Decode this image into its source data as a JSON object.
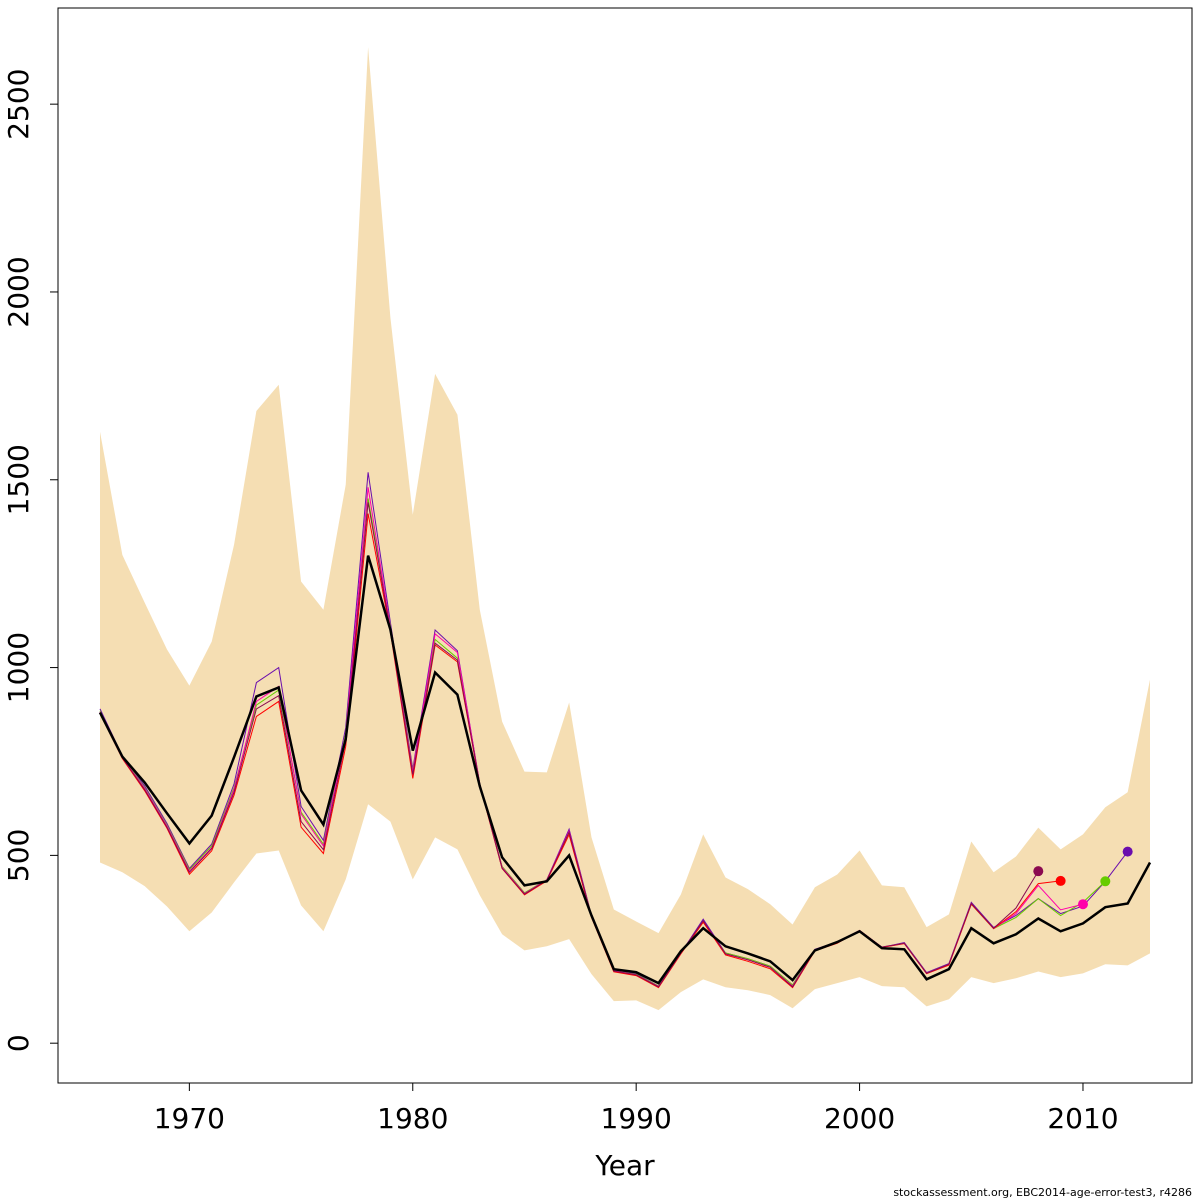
{
  "chart_data": {
    "type": "line",
    "x_label": "Year",
    "footer": "stockassessment.org, EBC2014-age-error-test3, r4286",
    "x": [
      1966,
      1967,
      1968,
      1969,
      1970,
      1971,
      1972,
      1973,
      1974,
      1975,
      1976,
      1977,
      1978,
      1979,
      1980,
      1981,
      1982,
      1983,
      1984,
      1985,
      1986,
      1987,
      1988,
      1989,
      1990,
      1991,
      1992,
      1993,
      1994,
      1995,
      1996,
      1997,
      1998,
      1999,
      2000,
      2001,
      2002,
      2003,
      2004,
      2005,
      2006,
      2007,
      2008,
      2009,
      2010,
      2011,
      2012,
      2013
    ],
    "xlim": [
      1964.12,
      2014.88
    ],
    "xticks": [
      1970,
      1980,
      1990,
      2000,
      2010
    ],
    "ylim": [
      -106,
      2756
    ],
    "yticks": [
      0,
      500,
      1000,
      1500,
      2000,
      2500
    ],
    "band": {
      "color": "#f5deb3",
      "upper": [
        1628,
        1300,
        1173,
        1048,
        952,
        1069,
        1327,
        1683,
        1753,
        1229,
        1154,
        1487,
        2652,
        1931,
        1407,
        1782,
        1673,
        1154,
        856,
        723,
        721,
        907,
        548,
        356,
        324,
        293,
        396,
        556,
        441,
        410,
        370,
        316,
        415,
        449,
        513,
        420,
        415,
        309,
        343,
        537,
        455,
        497,
        574,
        516,
        556,
        628,
        668,
        968
      ],
      "lower": [
        481,
        455,
        418,
        364,
        298,
        348,
        428,
        505,
        513,
        367,
        298,
        436,
        636,
        590,
        436,
        548,
        516,
        394,
        290,
        247,
        258,
        277,
        184,
        112,
        114,
        88,
        136,
        170,
        149,
        141,
        128,
        93,
        144,
        160,
        176,
        152,
        149,
        98,
        117,
        176,
        160,
        173,
        191,
        176,
        186,
        210,
        207,
        239
      ]
    },
    "series": [
      {
        "color": "#6a0dad",
        "values": [
          890,
          765,
          685,
          585,
          465,
          530,
          690,
          960,
          1000,
          630,
          540,
          840,
          1520,
          1120,
          730,
          1100,
          1045,
          690,
          470,
          400,
          435,
          570,
          340,
          195,
          185,
          152,
          240,
          330,
          240,
          225,
          205,
          155,
          250,
          270,
          300,
          255,
          268,
          188,
          212,
          375,
          308,
          340,
          385,
          345,
          365,
          431,
          510,
          null
        ]
      },
      {
        "color": "#66cc00",
        "values": [
          885,
          762,
          680,
          580,
          462,
          525,
          680,
          900,
          940,
          615,
          530,
          825,
          1450,
          1110,
          725,
          1075,
          1025,
          690,
          470,
          400,
          435,
          560,
          340,
          193,
          183,
          152,
          240,
          322,
          240,
          225,
          205,
          155,
          248,
          268,
          300,
          255,
          266,
          186,
          210,
          370,
          305,
          335,
          385,
          340,
          375,
          431,
          null,
          null
        ]
      },
      {
        "color": "#ff00aa",
        "values": [
          882,
          760,
          678,
          578,
          458,
          520,
          675,
          910,
          950,
          610,
          525,
          820,
          1480,
          1105,
          722,
          1090,
          1040,
          690,
          468,
          398,
          435,
          565,
          338,
          193,
          182,
          151,
          240,
          325,
          238,
          222,
          202,
          152,
          248,
          268,
          300,
          255,
          266,
          186,
          210,
          372,
          305,
          345,
          420,
          355,
          370,
          null,
          null,
          null
        ]
      },
      {
        "color": "#ff0000",
        "values": [
          878,
          758,
          672,
          572,
          450,
          512,
          660,
          870,
          910,
          575,
          505,
          790,
          1410,
          1095,
          705,
          1060,
          1015,
          688,
          465,
          395,
          432,
          555,
          335,
          190,
          180,
          148,
          238,
          322,
          235,
          218,
          198,
          148,
          246,
          266,
          300,
          255,
          265,
          185,
          208,
          370,
          305,
          350,
          425,
          432,
          null,
          null,
          null,
          null
        ]
      },
      {
        "color": "#8b0a50",
        "values": [
          880,
          760,
          675,
          575,
          455,
          518,
          668,
          890,
          925,
          590,
          515,
          805,
          1440,
          1100,
          715,
          1065,
          1020,
          690,
          466,
          397,
          434,
          562,
          338,
          192,
          182,
          150,
          240,
          326,
          238,
          222,
          202,
          150,
          248,
          268,
          300,
          256,
          266,
          186,
          210,
          372,
          306,
          360,
          458,
          null,
          null,
          null,
          null,
          null
        ]
      },
      {
        "color": "#000000",
        "values": [
          880,
          763,
          694,
          612,
          532,
          606,
          761,
          923,
          947,
          673,
          582,
          809,
          1298,
          1101,
          779,
          987,
          928,
          684,
          495,
          420,
          431,
          500,
          340,
          197,
          189,
          160,
          245,
          306,
          258,
          239,
          218,
          168,
          247,
          269,
          298,
          253,
          250,
          170,
          197,
          306,
          266,
          290,
          332,
          298,
          319,
          362,
          372,
          481
        ]
      }
    ]
  }
}
